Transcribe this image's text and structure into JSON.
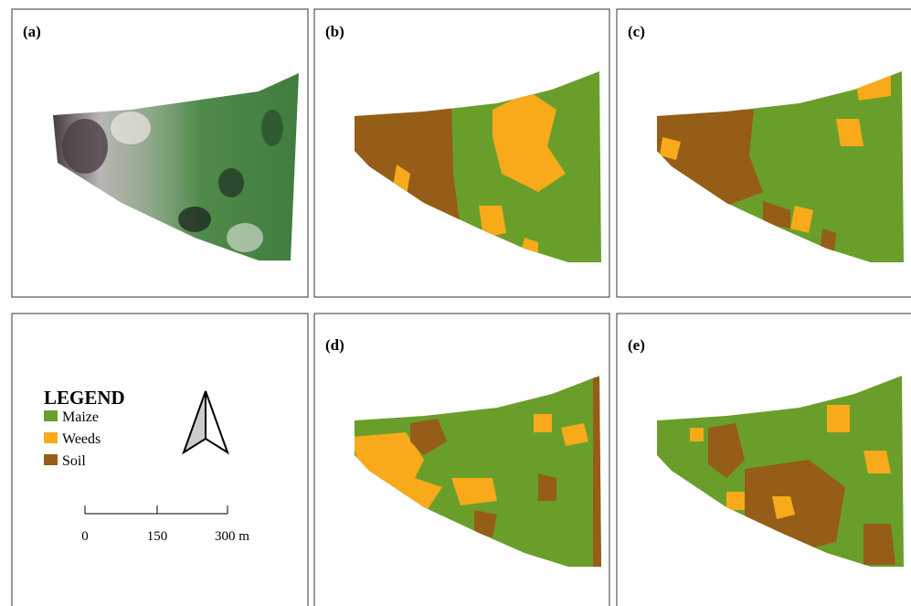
{
  "panels": [
    {
      "label": "(a)"
    },
    {
      "label": "(b)"
    },
    {
      "label": "(c)"
    },
    {
      "label": "(d)"
    },
    {
      "label": "(e)"
    }
  ],
  "legend": {
    "title": "LEGEND",
    "items": [
      {
        "name": "Maize",
        "color": "#6a9e2a"
      },
      {
        "name": "Weeds",
        "color": "#f8aa1a"
      },
      {
        "name": "Soil",
        "color": "#955d17"
      }
    ]
  },
  "scale_bar": {
    "labels": [
      "0",
      "150",
      "300 m"
    ]
  }
}
